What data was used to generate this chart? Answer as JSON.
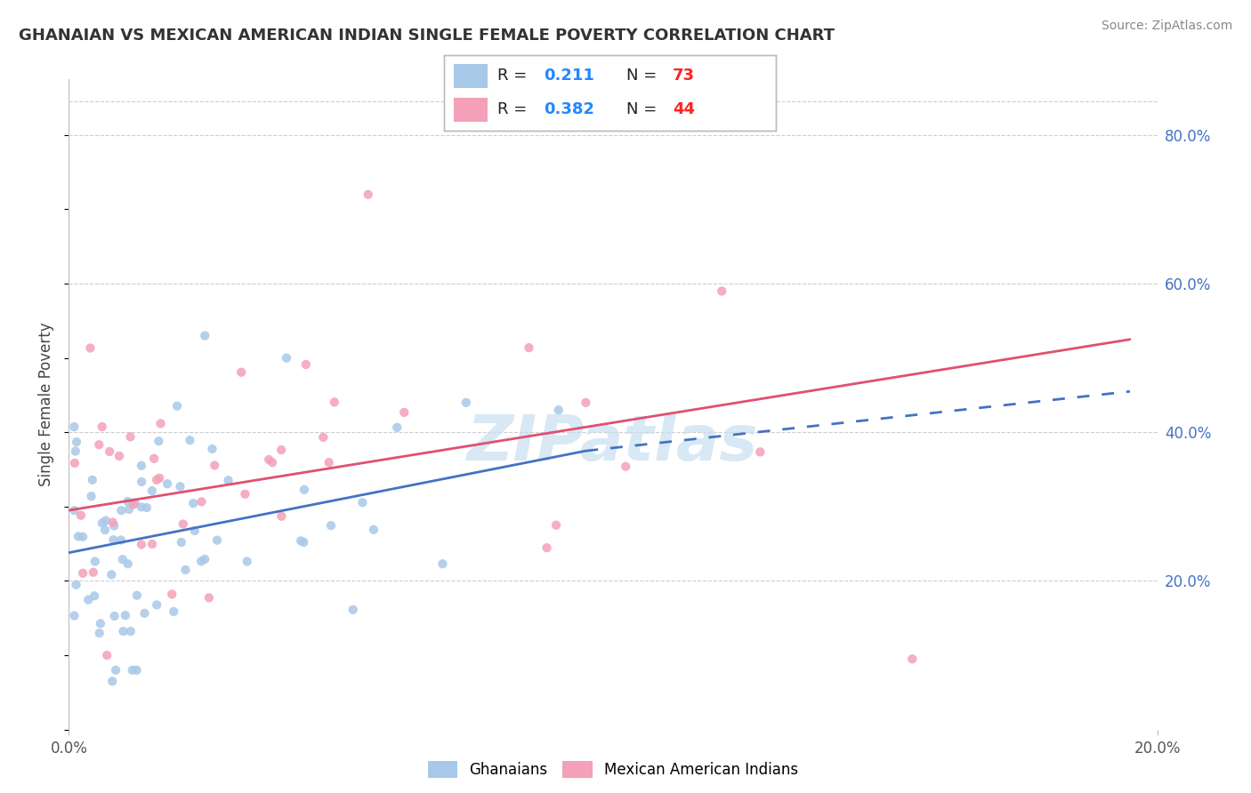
{
  "title": "GHANAIAN VS MEXICAN AMERICAN INDIAN SINGLE FEMALE POVERTY CORRELATION CHART",
  "source": "Source: ZipAtlas.com",
  "ylabel": "Single Female Poverty",
  "ylabel_right_ticks": [
    "20.0%",
    "40.0%",
    "60.0%",
    "80.0%"
  ],
  "ylabel_right_vals": [
    0.2,
    0.4,
    0.6,
    0.8
  ],
  "xlim": [
    0.0,
    0.2
  ],
  "ylim": [
    0.0,
    0.875
  ],
  "r_ghanaian": 0.211,
  "n_ghanaian": 73,
  "r_mexican": 0.382,
  "n_mexican": 44,
  "color_ghanaian": "#a8c8e8",
  "color_mexican": "#f4a0b8",
  "color_trend_ghanaian": "#4472c4",
  "color_trend_mexican": "#e05070",
  "watermark_color": "#c8dff0",
  "legend_r_color": "#2288ff",
  "legend_n_color": "#ff2222",
  "ghanaian_trend_x0": 0.0,
  "ghanaian_trend_y0": 0.238,
  "ghanaian_trend_x1_solid": 0.095,
  "ghanaian_trend_y1_solid": 0.375,
  "ghanaian_trend_x1_dash": 0.195,
  "ghanaian_trend_y1_dash": 0.455,
  "mexican_trend_x0": 0.0,
  "mexican_trend_y0": 0.295,
  "mexican_trend_x1": 0.195,
  "mexican_trend_y1": 0.525
}
